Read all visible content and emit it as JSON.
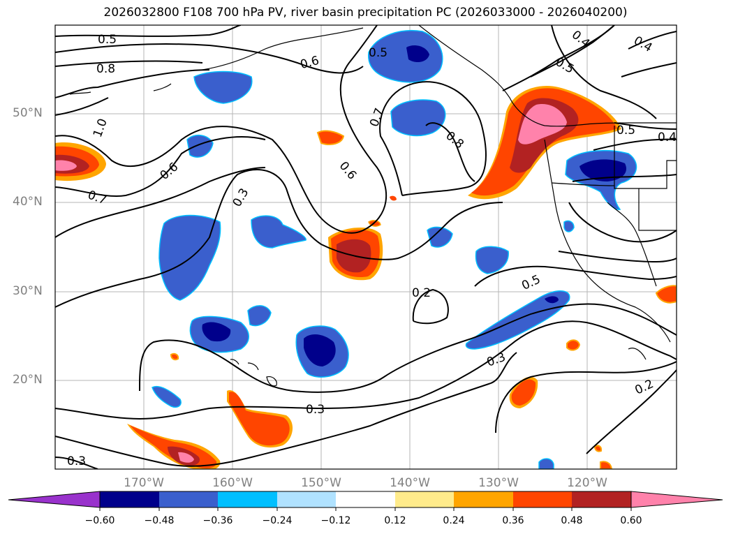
{
  "title": "2026032800 F108 700 hPa PV, river basin precipitation PC (2026033000 - 2026040200)",
  "map": {
    "lon_range": [
      -180,
      -110
    ],
    "lat_range": [
      10,
      59
    ],
    "lat_labels": [
      "50°N",
      "40°N",
      "30°N",
      "20°N"
    ],
    "lon_labels": [
      "170°W",
      "160°W",
      "150°W",
      "140°W",
      "130°W",
      "120°W"
    ],
    "contour_labels": [
      "0.5",
      "0.8",
      "1.0",
      "0.6",
      "0.7",
      "0.6",
      "0.3",
      "0.5",
      "0.7",
      "0.6",
      "0.8",
      "0.4",
      "0.5",
      "0.4",
      "0.5",
      "0.5",
      "0.2",
      "0.3",
      "0.3",
      "0.2",
      "0.4"
    ]
  },
  "colorbar": {
    "ticks": [
      "−0.60",
      "−0.48",
      "−0.36",
      "−0.24",
      "−0.12",
      "0.12",
      "0.24",
      "0.36",
      "0.48",
      "0.60"
    ],
    "colors": [
      "#9932cc",
      "#00008b",
      "#3a5fcd",
      "#00bfff",
      "#b0e2ff",
      "#ffffff",
      "#ffeb8b",
      "#ffa500",
      "#ff4500",
      "#b22222",
      "#ff82ab"
    ]
  }
}
